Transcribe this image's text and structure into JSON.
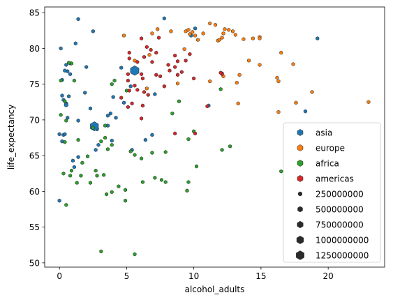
{
  "chart_data": {
    "type": "scatter",
    "xlabel": "alcohol_adults",
    "ylabel": "life_expectancy",
    "xlim": [
      -1.1,
      24.2
    ],
    "ylim": [
      49.4,
      85.8
    ],
    "xticks": [
      0,
      5,
      10,
      15,
      20
    ],
    "yticks": [
      50,
      55,
      60,
      65,
      70,
      75,
      80,
      85
    ],
    "grid": false,
    "legend_position": "lower right",
    "hue_legend": [
      "asia",
      "europe",
      "africa",
      "americas"
    ],
    "size_legend": [
      "250000000",
      "500000000",
      "750000000",
      "1000000000",
      "1250000000"
    ],
    "size_legend_values": [
      250000000,
      500000000,
      750000000,
      1000000000,
      1250000000
    ],
    "series": [
      {
        "name": "asia",
        "color": "#1f77b4",
        "points": [
          [
            0.1,
            80.0
          ],
          [
            0.5,
            77.7
          ],
          [
            0.8,
            77.9
          ],
          [
            1.4,
            84.1
          ],
          [
            1.2,
            80.7
          ],
          [
            2.5,
            82.4
          ],
          [
            0.2,
            75.6
          ],
          [
            0.6,
            76.8
          ],
          [
            0.4,
            76.9
          ],
          [
            0.8,
            76.4
          ],
          [
            0.5,
            72.3
          ],
          [
            0.3,
            72.8
          ],
          [
            0.2,
            73.4
          ],
          [
            0.7,
            73.3
          ],
          [
            0.6,
            70.3
          ],
          [
            1.4,
            69.9
          ],
          [
            2.0,
            77.4
          ],
          [
            1.9,
            73.8
          ],
          [
            2.3,
            71.6
          ],
          [
            2.8,
            68.7
          ],
          [
            3.6,
            70.6
          ],
          [
            3.8,
            70.9
          ],
          [
            4.2,
            70.3
          ],
          [
            4.8,
            72.4
          ],
          [
            4.0,
            73.2
          ],
          [
            3.6,
            69.2
          ],
          [
            3.9,
            67.1
          ],
          [
            2.9,
            66.5
          ],
          [
            2.7,
            65.8
          ],
          [
            1.4,
            64.8
          ],
          [
            1.0,
            64.3
          ],
          [
            1.1,
            63.4
          ],
          [
            0.3,
            67.9
          ],
          [
            0.2,
            67.0
          ],
          [
            0.4,
            68.0
          ],
          [
            0.0,
            68.0
          ],
          [
            0.0,
            58.7
          ],
          [
            4.6,
            77.3
          ],
          [
            6.4,
            67.2
          ],
          [
            6.9,
            67.9
          ],
          [
            7.1,
            73.6
          ],
          [
            5.3,
            74.7
          ],
          [
            5.4,
            65.8
          ],
          [
            9.8,
            81.8
          ],
          [
            10.1,
            82.8
          ],
          [
            11.1,
            72.0
          ],
          [
            18.3,
            71.2
          ],
          [
            19.2,
            81.4
          ],
          [
            7.8,
            84.2
          ],
          [
            5.6,
            76.9
          ],
          [
            2.6,
            69.1
          ],
          [
            0.5,
            72.1
          ]
        ],
        "populations": [
          90000000,
          90000000,
          90000000,
          90000000,
          90000000,
          90000000,
          90000000,
          90000000,
          90000000,
          90000000,
          90000000,
          90000000,
          90000000,
          90000000,
          90000000,
          90000000,
          90000000,
          90000000,
          90000000,
          90000000,
          90000000,
          90000000,
          90000000,
          90000000,
          90000000,
          90000000,
          90000000,
          90000000,
          90000000,
          90000000,
          90000000,
          90000000,
          90000000,
          90000000,
          90000000,
          90000000,
          90000000,
          90000000,
          90000000,
          90000000,
          90000000,
          90000000,
          90000000,
          90000000,
          90000000,
          90000000,
          90000000,
          90000000,
          90000000,
          1390000000,
          1300000000,
          250000000
        ]
      },
      {
        "name": "europe",
        "color": "#ff7f0e",
        "points": [
          [
            4.8,
            81.8
          ],
          [
            5.6,
            78.3
          ],
          [
            6.5,
            74.4
          ],
          [
            6.9,
            82.1
          ],
          [
            7.3,
            82.7
          ],
          [
            8.3,
            82.4
          ],
          [
            8.8,
            75.1
          ],
          [
            9.3,
            79.9
          ],
          [
            9.4,
            82.4
          ],
          [
            9.6,
            82.6
          ],
          [
            9.7,
            82.0
          ],
          [
            9.9,
            82.3
          ],
          [
            10.1,
            81.8
          ],
          [
            10.3,
            81.2
          ],
          [
            10.7,
            82.1
          ],
          [
            11.2,
            83.5
          ],
          [
            11.6,
            83.3
          ],
          [
            11.8,
            81.1
          ],
          [
            11.9,
            81.2
          ],
          [
            12.1,
            81.5
          ],
          [
            12.2,
            82.1
          ],
          [
            12.3,
            82.7
          ],
          [
            12.6,
            82.6
          ],
          [
            12.9,
            82.4
          ],
          [
            13.1,
            81.9
          ],
          [
            11.2,
            75.4
          ],
          [
            12.2,
            76.1
          ],
          [
            13.2,
            75.2
          ],
          [
            13.4,
            76.3
          ],
          [
            13.7,
            81.3
          ],
          [
            14.4,
            81.4
          ],
          [
            14.9,
            81.6
          ],
          [
            14.9,
            81.4
          ],
          [
            14.9,
            77.7
          ],
          [
            14.1,
            78.3
          ],
          [
            13.3,
            72.3
          ],
          [
            16.2,
            75.9
          ],
          [
            16.3,
            75.4
          ],
          [
            16.3,
            71.1
          ],
          [
            16.5,
            79.4
          ],
          [
            17.4,
            77.8
          ],
          [
            17.6,
            72.4
          ],
          [
            18.8,
            73.9
          ],
          [
            23.0,
            72.5
          ],
          [
            6.7,
            79.1
          ]
        ],
        "populations": [
          60000000,
          60000000,
          60000000,
          60000000,
          60000000,
          60000000,
          60000000,
          60000000,
          60000000,
          60000000,
          60000000,
          60000000,
          60000000,
          60000000,
          60000000,
          60000000,
          60000000,
          60000000,
          60000000,
          60000000,
          60000000,
          60000000,
          60000000,
          60000000,
          60000000,
          60000000,
          60000000,
          60000000,
          60000000,
          60000000,
          60000000,
          60000000,
          60000000,
          60000000,
          60000000,
          60000000,
          60000000,
          60000000,
          60000000,
          60000000,
          60000000,
          60000000,
          60000000,
          60000000,
          60000000
        ]
      },
      {
        "name": "africa",
        "color": "#2ca02c",
        "points": [
          [
            0.1,
            75.5
          ],
          [
            0.4,
            72.6
          ],
          [
            0.9,
            77.9
          ],
          [
            1.1,
            75.5
          ],
          [
            0.7,
            78.0
          ],
          [
            0.1,
            70.7
          ],
          [
            0.5,
            69.9
          ],
          [
            0.4,
            66.9
          ],
          [
            1.4,
            67.2
          ],
          [
            0.8,
            62.2
          ],
          [
            0.9,
            62.9
          ],
          [
            1.6,
            62.2
          ],
          [
            1.3,
            61.2
          ],
          [
            0.3,
            62.5
          ],
          [
            0.5,
            58.1
          ],
          [
            1.7,
            64.0
          ],
          [
            2.1,
            64.9
          ],
          [
            2.3,
            61.2
          ],
          [
            2.8,
            62.2
          ],
          [
            2.5,
            68.9
          ],
          [
            3.1,
            67.0
          ],
          [
            3.4,
            67.5
          ],
          [
            3.4,
            69.2
          ],
          [
            3.6,
            65.9
          ],
          [
            3.9,
            66.5
          ],
          [
            3.3,
            62.3
          ],
          [
            3.5,
            59.6
          ],
          [
            3.9,
            59.9
          ],
          [
            4.4,
            60.7
          ],
          [
            4.9,
            60.2
          ],
          [
            4.9,
            58.7
          ],
          [
            5.3,
            65.6
          ],
          [
            5.6,
            65.1
          ],
          [
            6.1,
            64.6
          ],
          [
            6.9,
            65.4
          ],
          [
            6.2,
            61.3
          ],
          [
            7.1,
            61.9
          ],
          [
            7.6,
            61.6
          ],
          [
            7.9,
            61.3
          ],
          [
            7.9,
            65.5
          ],
          [
            8.4,
            70.9
          ],
          [
            8.9,
            72.6
          ],
          [
            9.6,
            67.3
          ],
          [
            9.5,
            60.1
          ],
          [
            9.6,
            61.3
          ],
          [
            10.0,
            68.4
          ],
          [
            10.2,
            63.5
          ],
          [
            12.1,
            65.8
          ],
          [
            12.7,
            66.3
          ],
          [
            16.5,
            62.8
          ],
          [
            3.1,
            51.6
          ],
          [
            5.6,
            51.2
          ],
          [
            5.0,
            74.1
          ],
          [
            12.0,
            74.3
          ],
          [
            3.9,
            75.0
          ],
          [
            4.1,
            75.5
          ],
          [
            2.7,
            62.9
          ]
        ],
        "populations": [
          40000000,
          40000000,
          40000000,
          40000000,
          40000000,
          40000000,
          40000000,
          40000000,
          40000000,
          40000000,
          40000000,
          40000000,
          40000000,
          40000000,
          40000000,
          40000000,
          40000000,
          40000000,
          40000000,
          40000000,
          40000000,
          40000000,
          40000000,
          40000000,
          40000000,
          40000000,
          40000000,
          40000000,
          40000000,
          40000000,
          40000000,
          40000000,
          40000000,
          40000000,
          40000000,
          40000000,
          40000000,
          40000000,
          40000000,
          40000000,
          40000000,
          40000000,
          40000000,
          40000000,
          40000000,
          40000000,
          40000000,
          40000000,
          40000000,
          40000000,
          40000000,
          40000000,
          40000000,
          40000000,
          40000000,
          40000000,
          40000000
        ]
      },
      {
        "name": "americas",
        "color": "#d62728",
        "points": [
          [
            5.2,
            79.4
          ],
          [
            5.2,
            78.6
          ],
          [
            5.8,
            78.1
          ],
          [
            5.1,
            76.4
          ],
          [
            6.1,
            81.4
          ],
          [
            6.3,
            78.8
          ],
          [
            6.5,
            80.2
          ],
          [
            6.8,
            79.8
          ],
          [
            6.9,
            78.1
          ],
          [
            7.2,
            79.4
          ],
          [
            7.4,
            81.5
          ],
          [
            6.2,
            75.8
          ],
          [
            6.1,
            76.4
          ],
          [
            5.6,
            74.8
          ],
          [
            5.8,
            74.2
          ],
          [
            6.3,
            73.9
          ],
          [
            6.6,
            73.5
          ],
          [
            5.1,
            75.5
          ],
          [
            5.2,
            74.1
          ],
          [
            5.4,
            72.3
          ],
          [
            5.1,
            71.8
          ],
          [
            4.6,
            73.1
          ],
          [
            6.2,
            72.0
          ],
          [
            6.1,
            70.2
          ],
          [
            7.2,
            76.3
          ],
          [
            7.5,
            76.1
          ],
          [
            7.8,
            74.7
          ],
          [
            8.1,
            77.7
          ],
          [
            8.2,
            76.9
          ],
          [
            8.6,
            79.0
          ],
          [
            8.6,
            77.4
          ],
          [
            8.8,
            78.2
          ],
          [
            8.8,
            76.3
          ],
          [
            9.1,
            76.7
          ],
          [
            9.4,
            78.3
          ],
          [
            9.7,
            79.2
          ],
          [
            10.0,
            75.8
          ],
          [
            8.6,
            68.1
          ],
          [
            10.1,
            68.1
          ],
          [
            11.0,
            71.9
          ],
          [
            12.1,
            76.5
          ],
          [
            12.1,
            76.4
          ],
          [
            12.0,
            76.6
          ]
        ],
        "populations": [
          50000000,
          50000000,
          50000000,
          50000000,
          50000000,
          50000000,
          50000000,
          50000000,
          50000000,
          50000000,
          50000000,
          50000000,
          50000000,
          50000000,
          50000000,
          50000000,
          50000000,
          50000000,
          50000000,
          50000000,
          50000000,
          50000000,
          50000000,
          50000000,
          50000000,
          50000000,
          50000000,
          50000000,
          50000000,
          50000000,
          50000000,
          50000000,
          50000000,
          50000000,
          50000000,
          50000000,
          50000000,
          50000000,
          50000000,
          50000000,
          50000000,
          50000000,
          50000000
        ]
      }
    ]
  }
}
